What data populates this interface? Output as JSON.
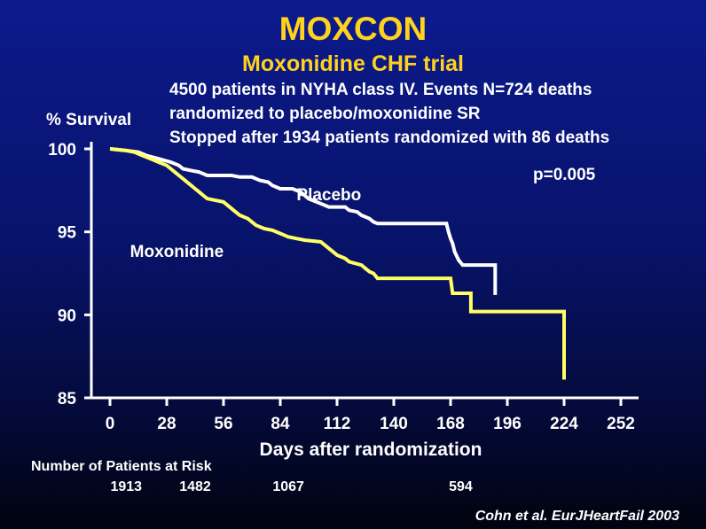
{
  "title": "MOXCON",
  "subtitle": "Moxonidine CHF trial",
  "description_lines": [
    "4500 patients in NYHA class IV. Events N=724 deaths",
    "randomized to placebo/moxonidine SR",
    "Stopped after 1934 patients randomized with 86 deaths"
  ],
  "annotation": "p=0.005",
  "risk_table": {
    "title": "Number of Patients at Risk",
    "entries": [
      {
        "day": 8,
        "count": "1913"
      },
      {
        "day": 42,
        "count": "1482"
      },
      {
        "day": 88,
        "count": "1067"
      },
      {
        "day": 173,
        "count": "594"
      }
    ]
  },
  "citation": "Cohn et al. EurJHeartFail 2003",
  "colors": {
    "title": "#ffd21f",
    "placebo": "#ffffff",
    "moxonidine": "#ffff66",
    "background_top": "#0c1a8c",
    "background_bottom": "#01030f"
  },
  "chart_data": {
    "type": "line",
    "title": "MOXCON",
    "subtitle": "Moxonidine CHF trial",
    "xlabel": "Days after randomization",
    "ylabel": "% Survival",
    "xlim": [
      0,
      252
    ],
    "ylim": [
      85,
      100
    ],
    "xticks": [
      0,
      28,
      56,
      84,
      112,
      140,
      168,
      196,
      224,
      252
    ],
    "yticks": [
      85,
      90,
      95,
      100
    ],
    "grid": false,
    "series": [
      {
        "name": "Placebo",
        "color": "#ffffff",
        "label_at": [
          108,
          96.9
        ],
        "points": [
          [
            0,
            100
          ],
          [
            8,
            99.9
          ],
          [
            14,
            99.8
          ],
          [
            18,
            99.6
          ],
          [
            24,
            99.4
          ],
          [
            30,
            99.2
          ],
          [
            34,
            99.0
          ],
          [
            36,
            98.8
          ],
          [
            40,
            98.7
          ],
          [
            44,
            98.6
          ],
          [
            48,
            98.4
          ],
          [
            56,
            98.4
          ],
          [
            60,
            98.4
          ],
          [
            64,
            98.3
          ],
          [
            70,
            98.3
          ],
          [
            74,
            98.1
          ],
          [
            78,
            98.0
          ],
          [
            80,
            97.8
          ],
          [
            84,
            97.6
          ],
          [
            90,
            97.6
          ],
          [
            94,
            97.4
          ],
          [
            96,
            97.2
          ],
          [
            98,
            97.0
          ],
          [
            100,
            96.9
          ],
          [
            104,
            96.7
          ],
          [
            108,
            96.5
          ],
          [
            112,
            96.5
          ],
          [
            116,
            96.5
          ],
          [
            118,
            96.3
          ],
          [
            122,
            96.2
          ],
          [
            124,
            96.0
          ],
          [
            128,
            95.8
          ],
          [
            130,
            95.6
          ],
          [
            132,
            95.5
          ],
          [
            150,
            95.5
          ],
          [
            166,
            95.5
          ],
          [
            167,
            95.0
          ],
          [
            168,
            94.6
          ],
          [
            169,
            94.3
          ],
          [
            170,
            93.8
          ],
          [
            172,
            93.3
          ],
          [
            174,
            93.0
          ],
          [
            180,
            93.0
          ],
          [
            190,
            93.0
          ],
          [
            190,
            91.2
          ]
        ]
      },
      {
        "name": "Moxonidine",
        "color": "#ffff66",
        "label_at": [
          33,
          93.5
        ],
        "points": [
          [
            0,
            100
          ],
          [
            8,
            99.9
          ],
          [
            12,
            99.8
          ],
          [
            16,
            99.6
          ],
          [
            20,
            99.4
          ],
          [
            24,
            99.2
          ],
          [
            28,
            99.0
          ],
          [
            30,
            98.8
          ],
          [
            32,
            98.6
          ],
          [
            34,
            98.4
          ],
          [
            36,
            98.2
          ],
          [
            38,
            98.0
          ],
          [
            40,
            97.8
          ],
          [
            42,
            97.6
          ],
          [
            44,
            97.4
          ],
          [
            46,
            97.2
          ],
          [
            48,
            97.0
          ],
          [
            52,
            96.9
          ],
          [
            56,
            96.8
          ],
          [
            58,
            96.6
          ],
          [
            60,
            96.4
          ],
          [
            62,
            96.2
          ],
          [
            64,
            96.0
          ],
          [
            68,
            95.8
          ],
          [
            70,
            95.6
          ],
          [
            72,
            95.4
          ],
          [
            76,
            95.2
          ],
          [
            80,
            95.1
          ],
          [
            84,
            94.9
          ],
          [
            88,
            94.7
          ],
          [
            92,
            94.6
          ],
          [
            96,
            94.5
          ],
          [
            104,
            94.4
          ],
          [
            106,
            94.2
          ],
          [
            108,
            94.0
          ],
          [
            110,
            93.8
          ],
          [
            112,
            93.6
          ],
          [
            116,
            93.4
          ],
          [
            118,
            93.2
          ],
          [
            124,
            93.0
          ],
          [
            126,
            92.8
          ],
          [
            128,
            92.6
          ],
          [
            130,
            92.5
          ],
          [
            132,
            92.2
          ],
          [
            140,
            92.2
          ],
          [
            150,
            92.2
          ],
          [
            168,
            92.2
          ],
          [
            169,
            91.3
          ],
          [
            178,
            91.3
          ],
          [
            178,
            90.2
          ],
          [
            190,
            90.2
          ],
          [
            210,
            90.2
          ],
          [
            224,
            90.2
          ],
          [
            224,
            86.1
          ]
        ]
      }
    ]
  }
}
